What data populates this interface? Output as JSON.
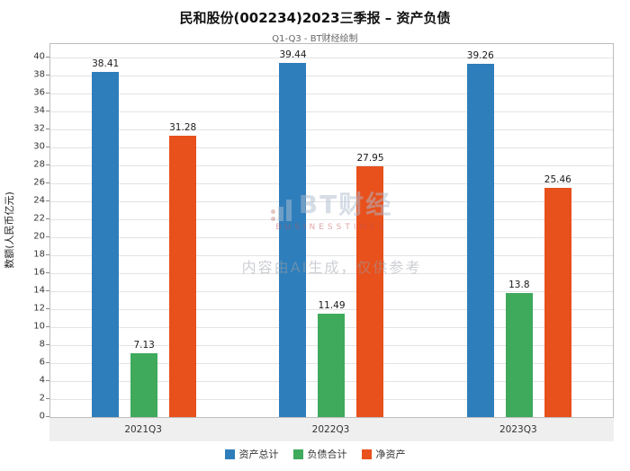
{
  "chart_data": {
    "type": "bar",
    "title": "民和股份(002234)2023三季报 – 资产负债",
    "subtitle": "Q1-Q3 - BT财经绘制",
    "categories": [
      "2021Q3",
      "2022Q3",
      "2023Q3"
    ],
    "series": [
      {
        "name": "资产总计",
        "color": "#2e7ebb",
        "values": [
          38.41,
          39.44,
          39.26
        ]
      },
      {
        "name": "负债合计",
        "color": "#3fa95c",
        "values": [
          7.13,
          11.49,
          13.8
        ]
      },
      {
        "name": "净资产",
        "color": "#e8501c",
        "values": [
          31.28,
          27.95,
          25.46
        ]
      }
    ],
    "xlabel": "",
    "ylabel": "数额(人民币亿元)",
    "ylim": [
      0,
      41.5
    ],
    "ytick_step": 2,
    "ytick_max": 40,
    "grid": true,
    "legend_position": "bottom"
  },
  "watermark": {
    "logo_text": "BT财经",
    "logo_sub": "BUSINESSTIMES",
    "disclaimer": "内容由AI生成，仅供参考"
  }
}
